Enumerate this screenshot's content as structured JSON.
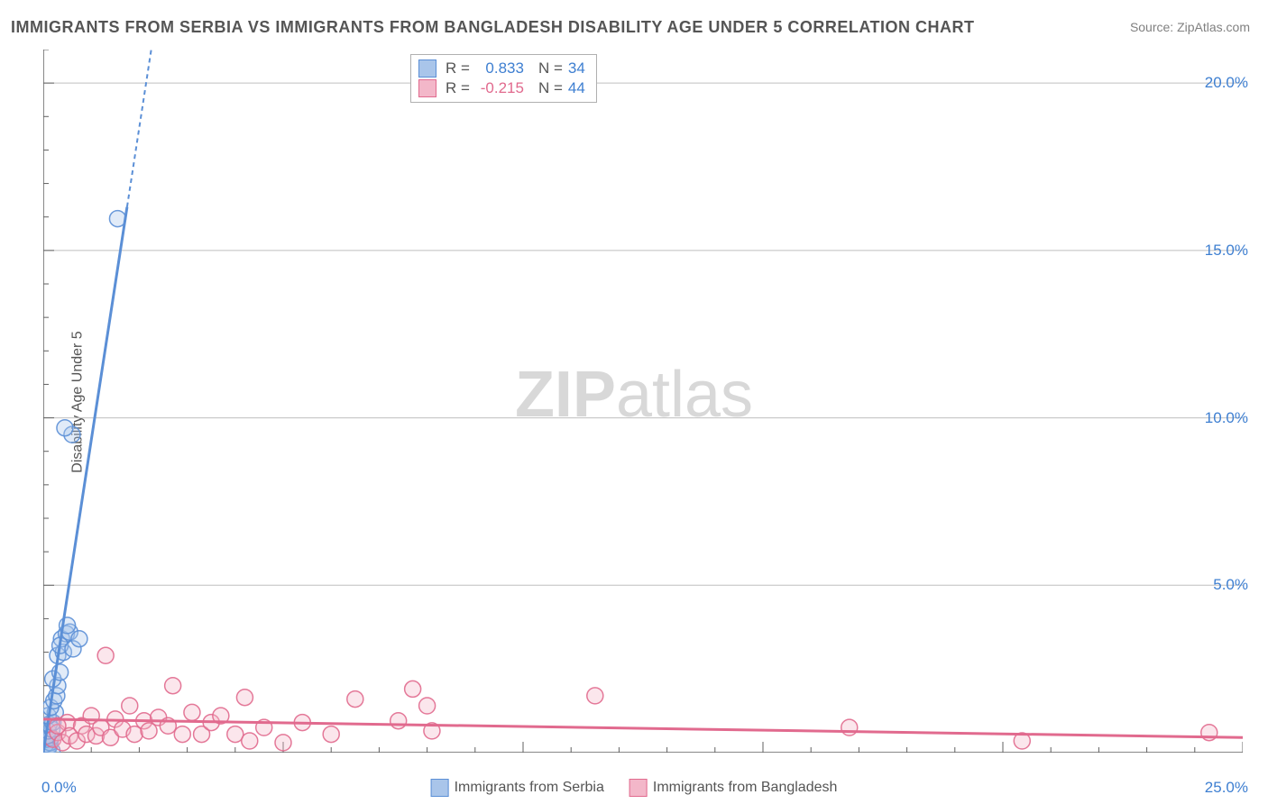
{
  "title": "IMMIGRANTS FROM SERBIA VS IMMIGRANTS FROM BANGLADESH DISABILITY AGE UNDER 5 CORRELATION CHART",
  "source": "Source: ZipAtlas.com",
  "ylabel": "Disability Age Under 5",
  "watermark_bold": "ZIP",
  "watermark_light": "atlas",
  "chart": {
    "type": "scatter",
    "background_color": "#ffffff",
    "grid_color": "#bfbfbf",
    "axis_color": "#606060",
    "tick_color": "#3e7fd1",
    "xlim": [
      0,
      25
    ],
    "ylim": [
      0,
      21
    ],
    "xticks": [
      0,
      5,
      10,
      15,
      20,
      25
    ],
    "yticks": [
      5,
      10,
      15,
      20
    ],
    "xtick_labels": {
      "0": "0.0%",
      "25": "25.0%"
    },
    "ytick_labels": {
      "5": "5.0%",
      "10": "10.0%",
      "15": "15.0%",
      "20": "20.0%"
    },
    "x_minor_step": 1,
    "y_minor_step": 1,
    "marker_radius": 9,
    "marker_fill_opacity": 0.35,
    "marker_stroke_opacity": 0.9,
    "trend_line_width": 3,
    "trend_dash": "5,4",
    "series": [
      {
        "name": "Immigrants from Serbia",
        "color": "#5b8fd6",
        "fill": "#a9c5ea",
        "R": "0.833",
        "N": "34",
        "trend": {
          "x1": 0,
          "y1": 0,
          "x2": 2.25,
          "y2": 21,
          "solid_until_y": 16.3
        },
        "points": [
          [
            0.05,
            0.05
          ],
          [
            0.08,
            0.1
          ],
          [
            0.1,
            0.15
          ],
          [
            0.12,
            0.18
          ],
          [
            0.05,
            0.25
          ],
          [
            0.14,
            0.3
          ],
          [
            0.07,
            0.4
          ],
          [
            0.16,
            0.45
          ],
          [
            0.08,
            0.5
          ],
          [
            0.1,
            0.65
          ],
          [
            0.18,
            0.7
          ],
          [
            0.12,
            0.85
          ],
          [
            0.2,
            0.9
          ],
          [
            0.1,
            1.1
          ],
          [
            0.25,
            1.2
          ],
          [
            0.15,
            1.35
          ],
          [
            0.22,
            1.55
          ],
          [
            0.28,
            1.7
          ],
          [
            0.3,
            2.0
          ],
          [
            0.2,
            2.2
          ],
          [
            0.35,
            2.4
          ],
          [
            0.3,
            2.9
          ],
          [
            0.42,
            3.0
          ],
          [
            0.38,
            3.4
          ],
          [
            0.48,
            3.55
          ],
          [
            0.55,
            3.6
          ],
          [
            0.35,
            3.2
          ],
          [
            0.62,
            3.1
          ],
          [
            0.75,
            3.4
          ],
          [
            0.5,
            3.8
          ],
          [
            0.6,
            9.5
          ],
          [
            0.45,
            9.7
          ],
          [
            1.55,
            15.95
          ],
          [
            0.18,
            0.05
          ]
        ]
      },
      {
        "name": "Immigrants from Bangladesh",
        "color": "#e16a8e",
        "fill": "#f3b7c9",
        "R": "-0.215",
        "N": "44",
        "trend": {
          "x1": 0,
          "y1": 1.0,
          "x2": 25,
          "y2": 0.45,
          "solid_until_y": null
        },
        "points": [
          [
            0.2,
            0.4
          ],
          [
            0.3,
            0.6
          ],
          [
            0.4,
            0.3
          ],
          [
            0.5,
            0.9
          ],
          [
            0.55,
            0.5
          ],
          [
            0.7,
            0.35
          ],
          [
            0.8,
            0.8
          ],
          [
            0.9,
            0.55
          ],
          [
            1.0,
            1.1
          ],
          [
            1.1,
            0.5
          ],
          [
            1.2,
            0.75
          ],
          [
            1.3,
            2.9
          ],
          [
            1.4,
            0.45
          ],
          [
            1.5,
            1.0
          ],
          [
            1.65,
            0.7
          ],
          [
            1.8,
            1.4
          ],
          [
            1.9,
            0.55
          ],
          [
            2.1,
            0.95
          ],
          [
            2.2,
            0.65
          ],
          [
            2.4,
            1.05
          ],
          [
            2.6,
            0.8
          ],
          [
            2.7,
            2.0
          ],
          [
            2.9,
            0.55
          ],
          [
            3.1,
            1.2
          ],
          [
            3.3,
            0.55
          ],
          [
            3.5,
            0.9
          ],
          [
            3.7,
            1.1
          ],
          [
            4.0,
            0.55
          ],
          [
            4.2,
            1.65
          ],
          [
            4.3,
            0.35
          ],
          [
            4.6,
            0.75
          ],
          [
            5.0,
            0.3
          ],
          [
            5.4,
            0.9
          ],
          [
            6.0,
            0.55
          ],
          [
            6.5,
            1.6
          ],
          [
            7.4,
            0.95
          ],
          [
            7.7,
            1.9
          ],
          [
            8.0,
            1.4
          ],
          [
            8.1,
            0.65
          ],
          [
            11.5,
            1.7
          ],
          [
            16.8,
            0.75
          ],
          [
            20.4,
            0.35
          ],
          [
            24.3,
            0.6
          ],
          [
            0.3,
            0.8
          ]
        ]
      }
    ],
    "legend_bottom_labels": [
      "Immigrants from Serbia",
      "Immigrants from Bangladesh"
    ]
  }
}
